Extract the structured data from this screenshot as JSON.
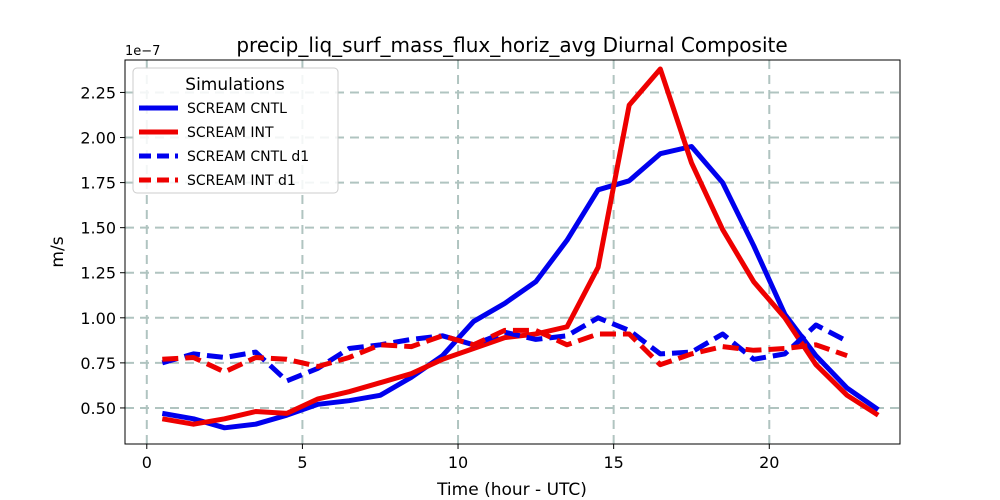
{
  "chart_data": {
    "type": "line",
    "title": "precip_liq_surf_mass_flux_horiz_avg Diurnal Composite",
    "xlabel": "Time (hour - UTC)",
    "ylabel": "m/s",
    "y_offset_text": "1e−7",
    "y_scale_factor": 1e-07,
    "xlim": [
      -0.7,
      24.2
    ],
    "ylim": [
      0.3,
      2.43
    ],
    "xticks": [
      0,
      5,
      10,
      15,
      20
    ],
    "xtick_labels": [
      "0",
      "5",
      "10",
      "15",
      "20"
    ],
    "yticks": [
      0.5,
      0.75,
      1.0,
      1.25,
      1.5,
      1.75,
      2.0,
      2.25
    ],
    "ytick_labels": [
      "0.50",
      "0.75",
      "1.00",
      "1.25",
      "1.50",
      "1.75",
      "2.00",
      "2.25"
    ],
    "grid": true,
    "legend": {
      "title": "Simulations",
      "placement": "upper-left"
    },
    "series": [
      {
        "name": "SCREAM CNTL",
        "color": "#0000ee",
        "style": "solid",
        "x": [
          0.5,
          1.5,
          2.5,
          3.5,
          4.5,
          5.5,
          6.5,
          7.5,
          8.5,
          9.5,
          10.5,
          11.5,
          12.5,
          13.5,
          14.5,
          15.5,
          16.5,
          17.5,
          18.5,
          19.5,
          20.5,
          21.5,
          22.5,
          23.5
        ],
        "y": [
          0.47,
          0.44,
          0.39,
          0.41,
          0.46,
          0.52,
          0.54,
          0.57,
          0.67,
          0.79,
          0.98,
          1.08,
          1.2,
          1.43,
          1.71,
          1.76,
          1.91,
          1.95,
          1.75,
          1.4,
          1.02,
          0.79,
          0.61,
          0.49
        ]
      },
      {
        "name": "SCREAM INT",
        "color": "#ee0000",
        "style": "solid",
        "x": [
          0.5,
          1.5,
          2.5,
          3.5,
          4.5,
          5.5,
          6.5,
          7.5,
          8.5,
          9.5,
          10.5,
          11.5,
          12.5,
          13.5,
          14.5,
          15.5,
          16.5,
          17.5,
          18.5,
          19.5,
          20.5,
          21.5,
          22.5,
          23.5
        ],
        "y": [
          0.44,
          0.41,
          0.44,
          0.48,
          0.47,
          0.55,
          0.59,
          0.64,
          0.69,
          0.77,
          0.83,
          0.89,
          0.91,
          0.95,
          1.28,
          2.18,
          2.38,
          1.86,
          1.49,
          1.2,
          1.0,
          0.74,
          0.57,
          0.46
        ]
      },
      {
        "name": "SCREAM CNTL d1",
        "color": "#0000ee",
        "style": "dashed",
        "x": [
          0.5,
          1.5,
          2.5,
          3.5,
          4.5,
          5.5,
          6.5,
          7.5,
          8.5,
          9.5,
          10.5,
          11.5,
          12.5,
          13.5,
          14.5,
          15.5,
          16.5,
          17.5,
          18.5,
          19.5,
          20.5,
          21.5,
          22.5
        ],
        "y": [
          0.75,
          0.8,
          0.78,
          0.81,
          0.65,
          0.72,
          0.83,
          0.85,
          0.88,
          0.9,
          0.85,
          0.92,
          0.88,
          0.9,
          1.0,
          0.93,
          0.8,
          0.81,
          0.91,
          0.77,
          0.8,
          0.96,
          0.87
        ]
      },
      {
        "name": "SCREAM INT d1",
        "color": "#ee0000",
        "style": "dashed",
        "x": [
          0.5,
          1.5,
          2.5,
          3.5,
          4.5,
          5.5,
          6.5,
          7.5,
          8.5,
          9.5,
          10.5,
          11.5,
          12.5,
          13.5,
          14.5,
          15.5,
          16.5,
          17.5,
          18.5,
          19.5,
          20.5,
          21.5,
          22.5
        ],
        "y": [
          0.77,
          0.78,
          0.7,
          0.78,
          0.77,
          0.73,
          0.78,
          0.85,
          0.84,
          0.9,
          0.85,
          0.93,
          0.93,
          0.85,
          0.91,
          0.91,
          0.74,
          0.8,
          0.84,
          0.82,
          0.83,
          0.85,
          0.79
        ]
      }
    ]
  }
}
